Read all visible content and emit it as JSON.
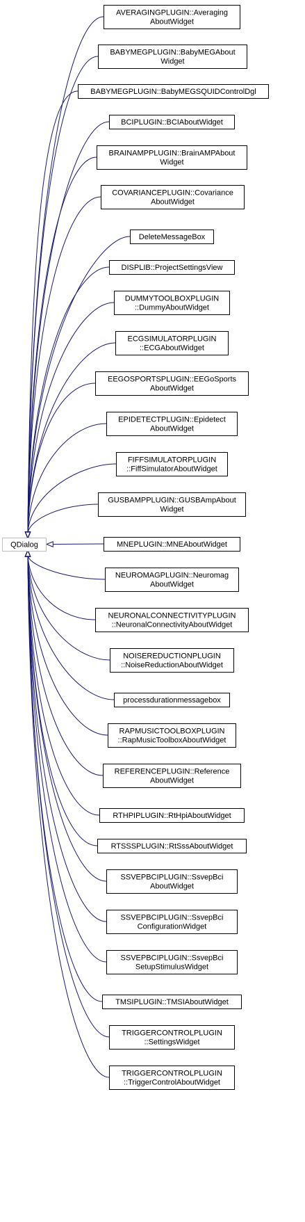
{
  "diagram": {
    "title": "QDialog inheritance graph",
    "base_class": "QDialog",
    "edge_color": "#191970",
    "base_border_color": "#bfbfbf",
    "derived_classes": [
      [
        "AVERAGINGPLUGIN::Averaging",
        "AboutWidget"
      ],
      [
        "BABYMEGPLUGIN::BabyMEGAbout",
        "Widget"
      ],
      [
        "BABYMEGPLUGIN::BabyMEGSQUIDControlDgl"
      ],
      [
        "BCIPLUGIN::BCIAboutWidget"
      ],
      [
        "BRAINAMPPLUGIN::BrainAMPAbout",
        "Widget"
      ],
      [
        "COVARIANCEPLUGIN::Covariance",
        "AboutWidget"
      ],
      [
        "DeleteMessageBox"
      ],
      [
        "DISPLIB::ProjectSettingsView"
      ],
      [
        "DUMMYTOOLBOXPLUGIN",
        "::DummyAboutWidget"
      ],
      [
        "ECGSIMULATORPLUGIN",
        "::ECGAboutWidget"
      ],
      [
        "EEGOSPORTSPLUGIN::EEGoSports",
        "AboutWidget"
      ],
      [
        "EPIDETECTPLUGIN::Epidetect",
        "AboutWidget"
      ],
      [
        "FIFFSIMULATORPLUGIN",
        "::FiffSimulatorAboutWidget"
      ],
      [
        "GUSBAMPPLUGIN::GUSBAmpAbout",
        "Widget"
      ],
      [
        "MNEPLUGIN::MNEAboutWidget"
      ],
      [
        "NEUROMAGPLUGIN::Neuromag",
        "AboutWidget"
      ],
      [
        "NEURONALCONNECTIVITYPLUGIN",
        "::NeuronalConnectivityAboutWidget"
      ],
      [
        "NOISEREDUCTIONPLUGIN",
        "::NoiseReductionAboutWidget"
      ],
      [
        "processdurationmessagebox"
      ],
      [
        "RAPMUSICTOOLBOXPLUGIN",
        "::RapMusicToolboxAboutWidget"
      ],
      [
        "REFERENCEPLUGIN::Reference",
        "AboutWidget"
      ],
      [
        "RTHPIPLUGIN::RtHpiAboutWidget"
      ],
      [
        "RTSSSPLUGIN::RtSssAboutWidget"
      ],
      [
        "SSVEPBCIPLUGIN::SsvepBci",
        "AboutWidget"
      ],
      [
        "SSVEPBCIPLUGIN::SsvepBci",
        "ConfigurationWidget"
      ],
      [
        "SSVEPBCIPLUGIN::SsvepBci",
        "SetupStimulusWidget"
      ],
      [
        "TMSIPLUGIN::TMSIAboutWidget"
      ],
      [
        "TRIGGERCONTROLPLUGIN",
        "::SettingsWidget"
      ],
      [
        "TRIGGERCONTROLPLUGIN",
        "::TriggerControlAboutWidget"
      ]
    ]
  }
}
